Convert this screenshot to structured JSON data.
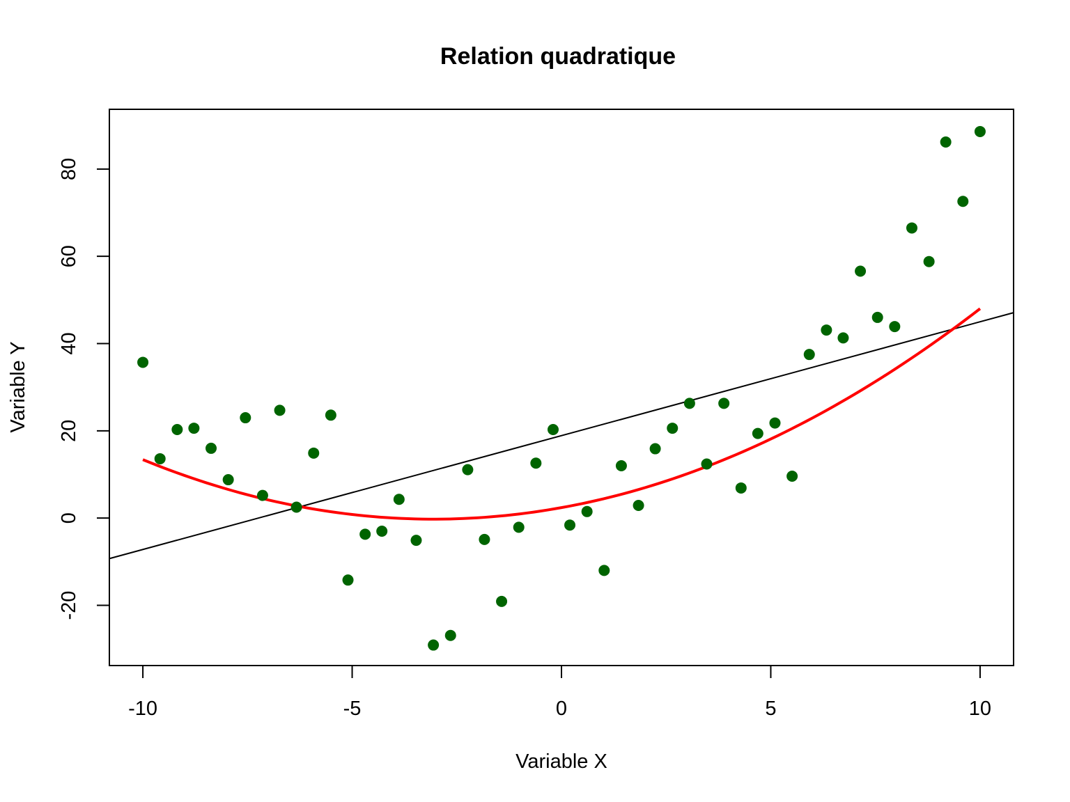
{
  "chart_data": {
    "type": "scatter",
    "title": "Relation quadratique",
    "xlabel": "Variable X",
    "ylabel": "Variable Y",
    "xlim": [
      -10.8,
      10.8
    ],
    "ylim": [
      -33.8,
      93.7
    ],
    "xticks": [
      -10,
      -5,
      0,
      5,
      10
    ],
    "xtick_labels": [
      "-10",
      "-5",
      "0",
      "5",
      "10"
    ],
    "yticks": [
      -20,
      0,
      20,
      40,
      60,
      80
    ],
    "ytick_labels": [
      "-20",
      "0",
      "20",
      "40",
      "60",
      "80"
    ],
    "grid": false,
    "legend": "none",
    "points_color": "#006400",
    "points": {
      "x": [
        -10.0,
        -9.59,
        -9.18,
        -8.78,
        -8.37,
        -7.96,
        -7.55,
        -7.14,
        -6.73,
        -6.33,
        -5.92,
        -5.51,
        -5.1,
        -4.69,
        -4.29,
        -3.88,
        -3.47,
        -3.06,
        -2.65,
        -2.24,
        -1.84,
        -1.43,
        -1.02,
        -0.61,
        -0.2,
        0.2,
        0.61,
        1.02,
        1.43,
        1.84,
        2.24,
        2.65,
        3.06,
        3.47,
        3.88,
        4.29,
        4.69,
        5.1,
        5.51,
        5.92,
        6.33,
        6.73,
        7.14,
        7.55,
        7.96,
        8.37,
        8.78,
        9.18,
        9.59,
        10.0
      ],
      "y": [
        35.7,
        13.6,
        20.3,
        20.6,
        16.0,
        8.8,
        23.0,
        5.2,
        24.7,
        2.5,
        14.9,
        23.6,
        -14.2,
        -3.7,
        -3.0,
        4.3,
        -5.1,
        -29.1,
        -26.9,
        11.1,
        -4.9,
        -19.1,
        -2.1,
        12.6,
        20.3,
        -1.6,
        1.5,
        -12.0,
        12.0,
        2.9,
        15.9,
        20.6,
        26.3,
        12.4,
        26.3,
        6.9,
        19.4,
        21.8,
        9.6,
        37.5,
        43.1,
        41.3,
        56.6,
        46.0,
        43.9,
        66.5,
        58.8,
        86.2,
        72.6,
        88.6
      ]
    },
    "linear_fit": {
      "color": "#000000",
      "intercept": 18.9,
      "slope": 2.61
    },
    "quadratic_fit": {
      "color": "#ff0000",
      "a": 0.283,
      "b": 1.73,
      "c": 2.4,
      "x_range": [
        -10,
        10
      ]
    }
  }
}
